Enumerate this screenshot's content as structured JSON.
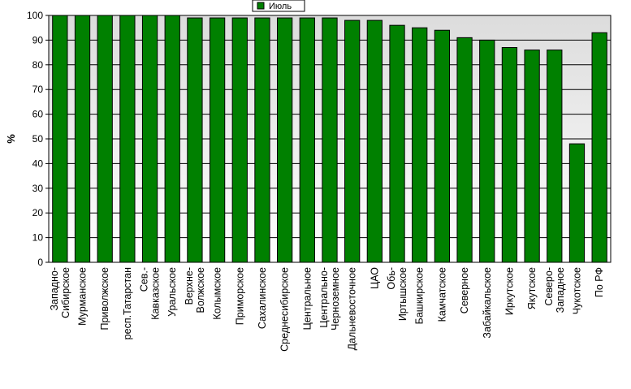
{
  "chart_data": {
    "type": "bar",
    "title": "",
    "xlabel": "",
    "ylabel": "%",
    "ylim": [
      0,
      100
    ],
    "yticks": [
      0,
      10,
      20,
      30,
      40,
      50,
      60,
      70,
      80,
      90,
      100
    ],
    "grid": true,
    "legend_position": "top-center",
    "series": [
      {
        "name": "Июль",
        "color": "#008000",
        "values": [
          100,
          100,
          100,
          100,
          100,
          100,
          99,
          99,
          99,
          99,
          99,
          99,
          99,
          98,
          98,
          96,
          95,
          94,
          91,
          90,
          87,
          86,
          86,
          48,
          93
        ]
      }
    ],
    "categories": [
      "Западно-Сибирское",
      "Мурманское",
      "Приволжское",
      "респ.Татарстан",
      "Сев.-Кавказское",
      "Уральское",
      "Верхне-Волжское",
      "Колымское",
      "Приморское",
      "Сахалинское",
      "Среднесибирское",
      "Центральное",
      "Центрально-Черноземное",
      "Дальневосточное",
      "ЦАО",
      "Обь-Иртышское",
      "Башкирское",
      "Камчатское",
      "Северное",
      "Забайкальское",
      "Иркутское",
      "Якутское",
      "Северо-Западное",
      "Чукотское",
      "По РФ"
    ],
    "category_lines": [
      [
        "Западно-",
        "Сибирское"
      ],
      [
        "Мурманское"
      ],
      [
        "Приволжское"
      ],
      [
        "респ.Татарстан"
      ],
      [
        "Сев.-",
        "Кавказское"
      ],
      [
        "Уральское"
      ],
      [
        "Верхне-",
        "Волжское"
      ],
      [
        "Колымское"
      ],
      [
        "Приморское"
      ],
      [
        "Сахалинское"
      ],
      [
        "Среднесибирское"
      ],
      [
        "Центральное"
      ],
      [
        "Центрально-",
        "Черноземное"
      ],
      [
        "Дальневосточное"
      ],
      [
        "ЦАО"
      ],
      [
        "Обь-",
        "Иртышское"
      ],
      [
        "Башкирское"
      ],
      [
        "Камчатское"
      ],
      [
        "Северное"
      ],
      [
        "Забайкальское"
      ],
      [
        "Иркутское"
      ],
      [
        "Якутское"
      ],
      [
        "Северо-",
        "Западное"
      ],
      [
        "Чукотское"
      ],
      [
        "По РФ"
      ]
    ]
  }
}
